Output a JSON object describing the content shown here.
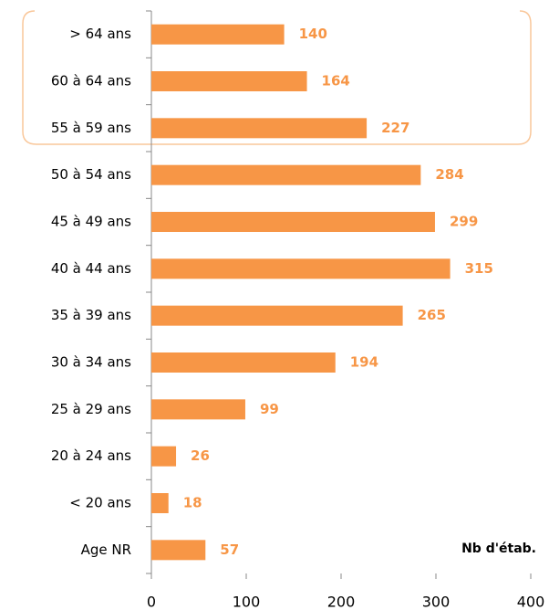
{
  "chart_data": {
    "type": "bar",
    "orientation": "horizontal",
    "categories": [
      "> 64 ans",
      "60 à 64 ans",
      "55 à 59 ans",
      "50 à 54 ans",
      "45 à 49 ans",
      "40 à 44 ans",
      "35 à 39 ans",
      "30 à 34 ans",
      "25 à 29 ans",
      "20 à 24 ans",
      "< 20 ans",
      "Age NR"
    ],
    "values": [
      140,
      164,
      227,
      284,
      299,
      315,
      265,
      194,
      99,
      26,
      18,
      57
    ],
    "color": "#f79646",
    "xlim": [
      0,
      400
    ],
    "xticks": [
      0,
      100,
      200,
      300,
      400
    ],
    "annotation": "Nb d'étab."
  }
}
